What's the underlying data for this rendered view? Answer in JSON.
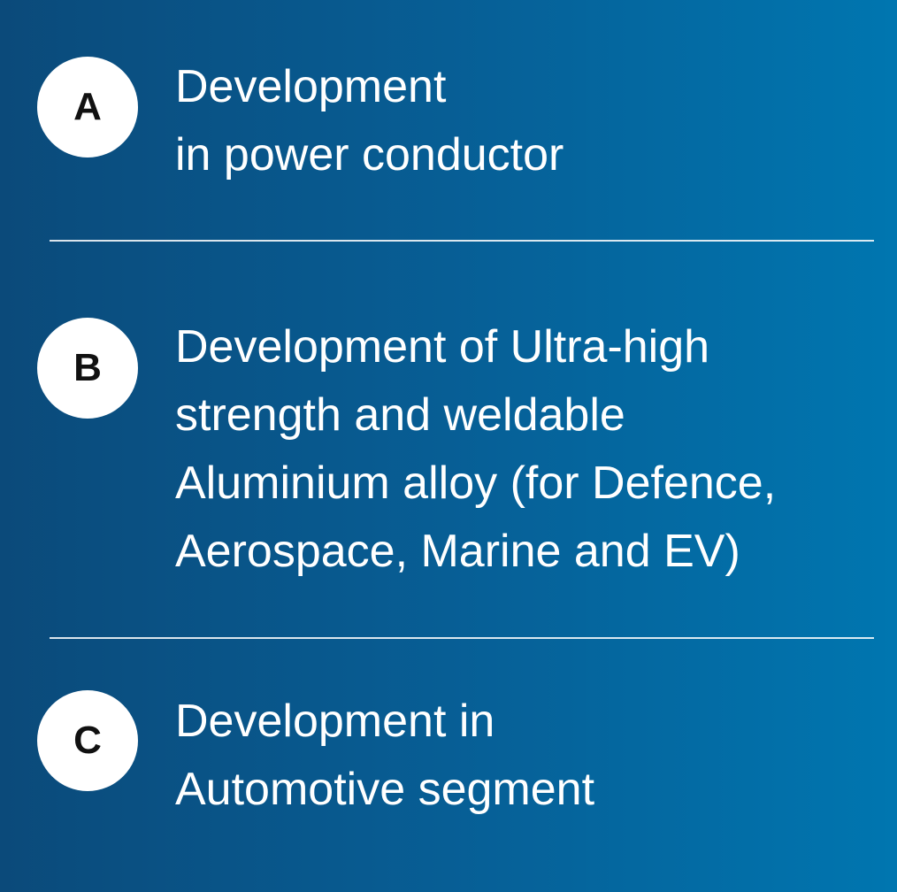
{
  "items": [
    {
      "badge": "A",
      "lines": [
        "Development",
        "in power conductor"
      ]
    },
    {
      "badge": "B",
      "lines": [
        "Development of Ultra-high",
        "strength and weldable",
        "Aluminium alloy (for Defence,",
        "Aerospace, Marine and EV)"
      ]
    },
    {
      "badge": "C",
      "lines": [
        "Development in",
        "Automotive segment"
      ]
    }
  ],
  "colors": {
    "background_left": "#0b4a7a",
    "background_right": "#0076b0",
    "badge": "#ffffff",
    "badge_text": "#111111",
    "text": "#ffffff",
    "divider": "#ffffff"
  }
}
